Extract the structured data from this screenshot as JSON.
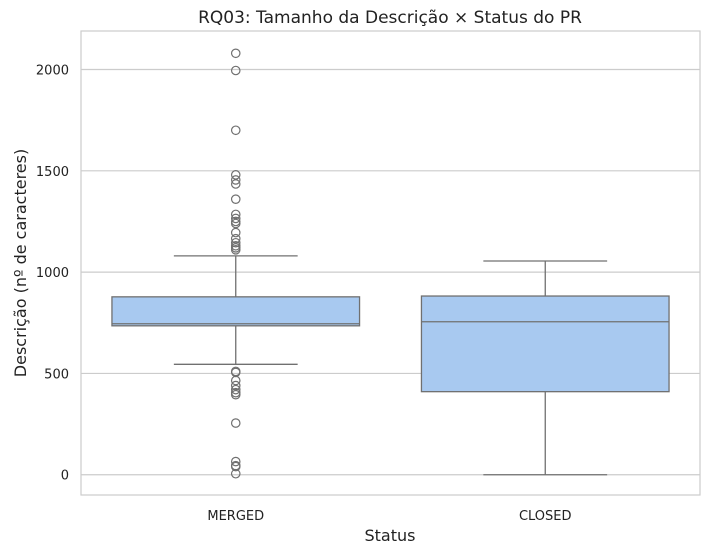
{
  "chart_data": {
    "type": "box",
    "title": "RQ03: Tamanho da Descrição × Status do PR",
    "xlabel": "Status",
    "ylabel": "Descrição (nº de caracteres)",
    "categories": [
      "MERGED",
      "CLOSED"
    ],
    "ylim": [
      -100,
      2190
    ],
    "yticks": [
      0,
      500,
      1000,
      1500,
      2000
    ],
    "grid": "horizontal",
    "box_color": "#a8c9f0",
    "line_color": "#707070",
    "boxes": [
      {
        "category": "MERGED",
        "whisker_low": 545,
        "q1": 735,
        "median": 745,
        "q3": 878,
        "whisker_high": 1080,
        "outliers": [
          2080,
          1995,
          1700,
          1480,
          1455,
          1435,
          1360,
          1285,
          1265,
          1250,
          1240,
          1195,
          1165,
          1145,
          1130,
          1120,
          1110,
          510,
          505,
          465,
          440,
          420,
          405,
          395,
          255,
          65,
          45,
          40,
          5
        ]
      },
      {
        "category": "CLOSED",
        "whisker_low": 0,
        "q1": 410,
        "median": 755,
        "q3": 882,
        "whisker_high": 1055,
        "outliers": []
      }
    ]
  }
}
